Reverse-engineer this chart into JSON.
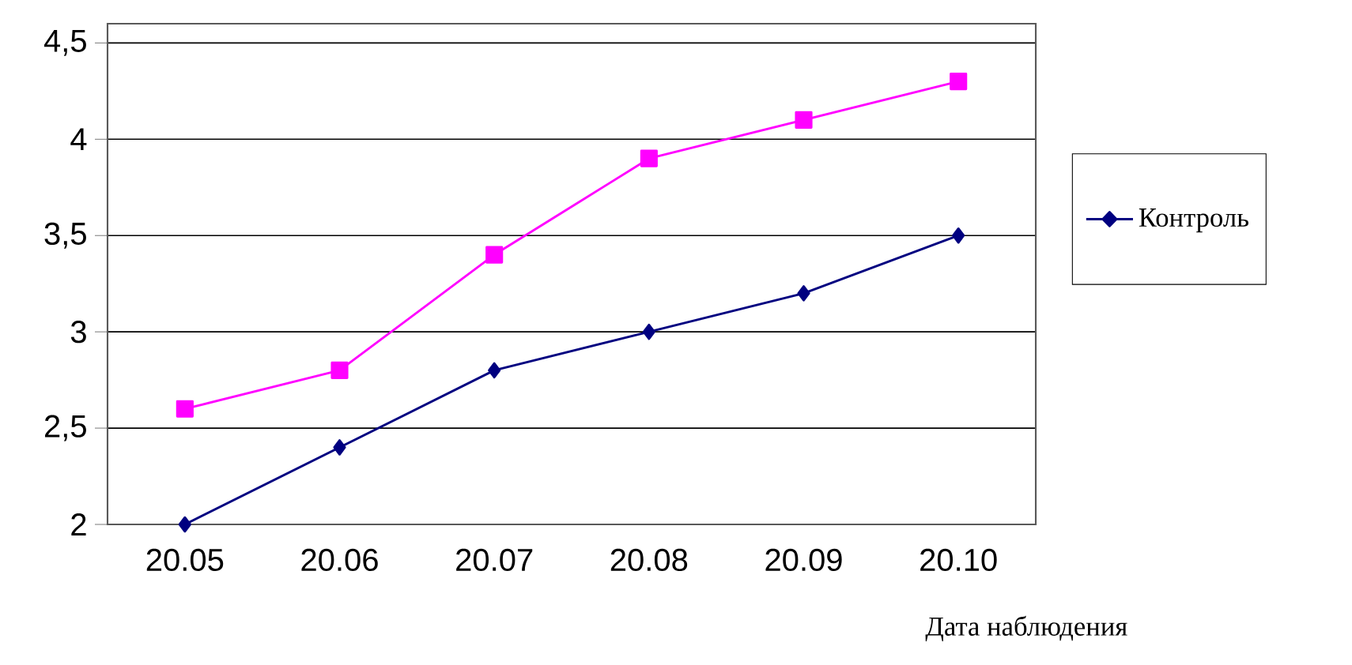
{
  "chart_data": {
    "type": "line",
    "xlabel": "Дата наблюдения",
    "categories": [
      "20.05",
      "20.06",
      "20.07",
      "20.08",
      "20.09",
      "20.10"
    ],
    "series": [
      {
        "name": "Контроль",
        "color": "#000080",
        "marker": "diamond",
        "values": [
          2.0,
          2.4,
          2.8,
          3.0,
          3.2,
          3.5
        ]
      },
      {
        "color": "#ff00ff",
        "marker": "square",
        "values": [
          2.6,
          2.8,
          3.4,
          3.9,
          4.1,
          4.3
        ]
      }
    ],
    "ylim": [
      2,
      4.6
    ],
    "yticks": [
      2,
      {
        "value": 2.5,
        "label": "2,5"
      },
      3,
      {
        "value": 3.5,
        "label": "3,5"
      },
      4,
      {
        "value": 4.5,
        "label": "4,5"
      }
    ],
    "grid": "y",
    "legend": "right",
    "line_style": "solid"
  }
}
